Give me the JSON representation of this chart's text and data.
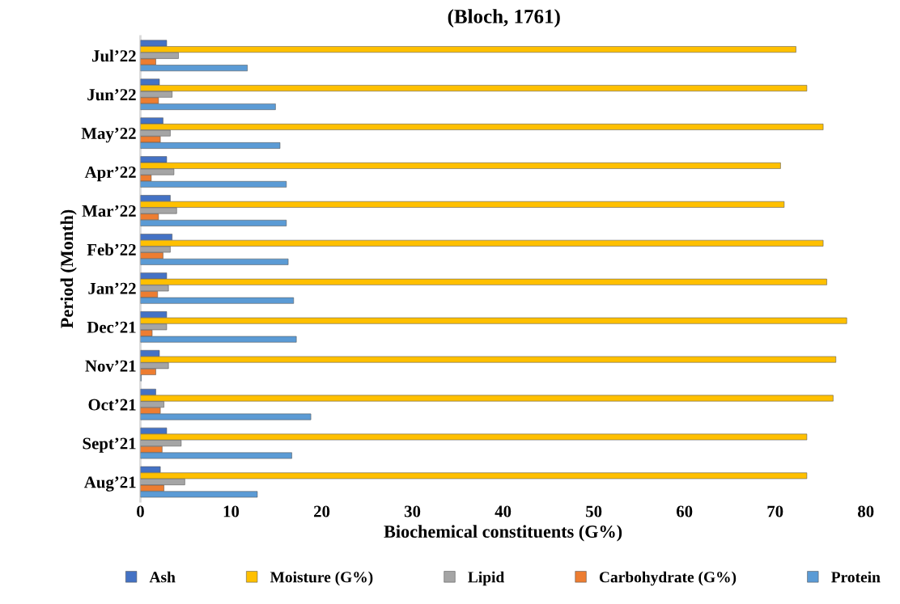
{
  "chart_data": {
    "type": "bar",
    "orientation": "horizontal",
    "title": "(Bloch, 1761)",
    "xlabel": "Biochemical constituents (G%)",
    "ylabel": "Period (Month)",
    "categories": [
      "Jul’22",
      "Jun’22",
      "May’22",
      "Apr’22",
      "Mar’22",
      "Feb’22",
      "Jan’22",
      "Dec’21",
      "Nov’21",
      "Oct’21",
      "Sept’21",
      "Aug’21"
    ],
    "series": [
      {
        "name": "Ash",
        "color": "#4472c4",
        "values": [
          2.9,
          2.1,
          2.5,
          2.9,
          3.3,
          3.5,
          2.9,
          2.9,
          2.1,
          1.7,
          2.9,
          2.2
        ]
      },
      {
        "name": "Moisture (G%)",
        "color": "#ffc000",
        "values": [
          72.3,
          73.5,
          75.3,
          70.6,
          71.0,
          75.3,
          75.7,
          77.9,
          76.7,
          76.4,
          73.5,
          73.5
        ]
      },
      {
        "name": "Lipid",
        "color": "#a5a5a5",
        "values": [
          4.2,
          3.5,
          3.3,
          3.7,
          4.0,
          3.3,
          3.1,
          2.9,
          3.1,
          2.6,
          4.5,
          4.9
        ]
      },
      {
        "name": "Carbohydrate (G%)",
        "color": "#ed7d31",
        "values": [
          1.7,
          2.0,
          2.2,
          1.2,
          2.0,
          2.5,
          1.9,
          1.3,
          1.7,
          2.2,
          2.4,
          2.6
        ]
      },
      {
        "name": "Protein",
        "color": "#5b9bd5",
        "values": [
          11.8,
          14.9,
          15.4,
          16.1,
          16.1,
          16.3,
          16.9,
          17.2,
          0.1,
          18.8,
          16.7,
          12.9
        ]
      }
    ],
    "xlim": [
      0,
      80
    ],
    "xticks": [
      0,
      10,
      20,
      30,
      40,
      50,
      60,
      70,
      80
    ],
    "grid": false,
    "legend": "bottom"
  }
}
